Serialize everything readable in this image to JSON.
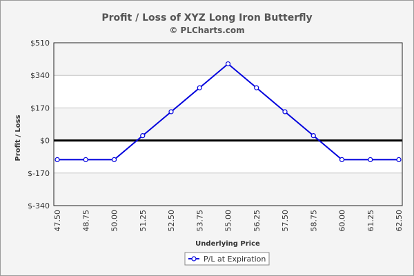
{
  "chart_data": {
    "type": "line",
    "title": "Profit / Loss of XYZ Long Iron Butterfly",
    "subtitle": "© PLCharts.com",
    "xlabel": "Underlying Price",
    "ylabel": "Profit / Loss",
    "categories": [
      "47.50",
      "48.75",
      "50.00",
      "51.25",
      "52.50",
      "53.75",
      "55.00",
      "56.25",
      "57.50",
      "58.75",
      "60.00",
      "61.25",
      "62.50"
    ],
    "series": [
      {
        "name": "P/L at Expiration",
        "color": "#0000dd",
        "values": [
          -100,
          -100,
          -100,
          25,
          150,
          275,
          400,
          275,
          150,
          25,
          -100,
          -100,
          -100
        ]
      }
    ],
    "ylim": [
      -340,
      510
    ],
    "yticks": [
      -340,
      -170,
      0,
      170,
      340,
      510
    ],
    "ytick_labels": [
      "$-340",
      "$-170",
      "$0",
      "$170",
      "$340",
      "$510"
    ],
    "zero_line": true,
    "grid": true,
    "legend_position": "bottom-center"
  }
}
